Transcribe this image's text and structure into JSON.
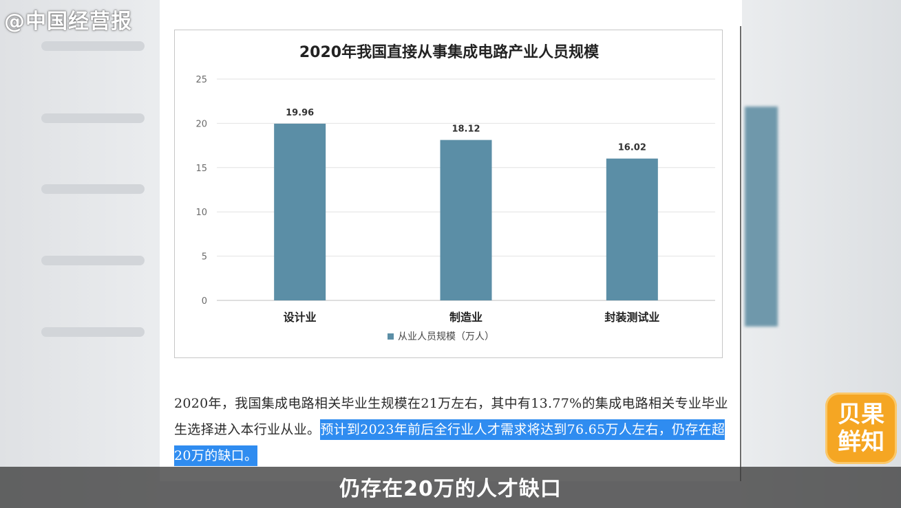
{
  "watermark": "@中国经营报",
  "chart_data": {
    "type": "bar",
    "title": "2020年我国直接从事集成电路产业人员规模",
    "categories": [
      "设计业",
      "制造业",
      "封装测试业"
    ],
    "series": [
      {
        "name": "从业人员规模（万人）",
        "values": [
          19.96,
          18.12,
          16.02
        ]
      }
    ],
    "value_labels": [
      "19.96",
      "18.12",
      "16.02"
    ],
    "yticks": [
      0,
      5,
      10,
      15,
      20,
      25
    ],
    "ylim": [
      0,
      25
    ],
    "xlabel": "",
    "ylabel": "",
    "grid": true,
    "legend_position": "bottom",
    "bar_color": "#5b8ea6"
  },
  "paragraph": {
    "normal": "2020年，我国集成电路相关毕业生规模在21万左右，其中有13.77%的集成电路相关专业毕业生选择进入本行业从业。",
    "highlight": "预计到2023年前后全行业人才需求将达到76.65万人左右，仍存在超20万的缺口。"
  },
  "logo": {
    "line1": "贝果",
    "line2": "鲜知"
  },
  "subtitle": "仍存在20万的人才缺口",
  "colors": {
    "highlight": "#2f8cf0",
    "logo": "#f5a623"
  }
}
